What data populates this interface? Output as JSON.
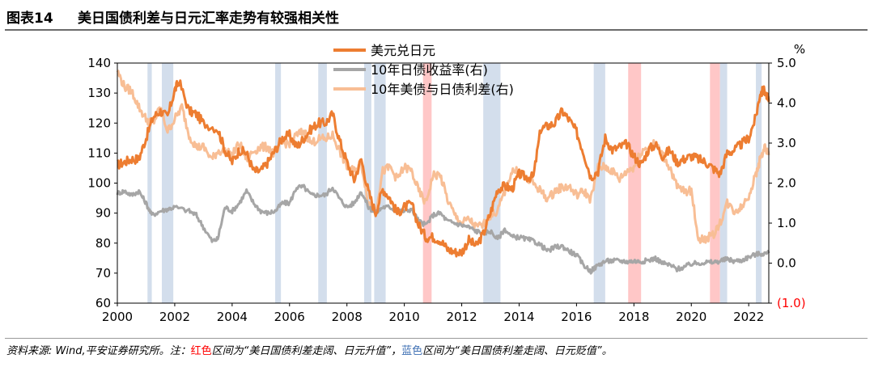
{
  "figure": {
    "label": "图表14",
    "title": "美日国债利差与日元汇率走势有较强相关性"
  },
  "source_note": {
    "prefix": "资料来源: Wind,平安证券研究所。注：",
    "red_word": "红色",
    "middle1": "区间为“美日国债利差走阔、日元升值”，",
    "blue_word": "蓝色",
    "middle2": "区间为“美日国债利差走阔、日元贬值”。"
  },
  "colors": {
    "usdjpy": "#ed7d31",
    "jgb10y": "#a6a6a6",
    "spread": "#f8be95",
    "red_band": "#ffc7c7",
    "blue_band": "#d3deec",
    "neg_label": "#ff0000"
  },
  "chart_data": {
    "type": "line",
    "x_ticks": [
      "2000",
      "2002",
      "2004",
      "2006",
      "2008",
      "2010",
      "2012",
      "2014",
      "2016",
      "2018",
      "2020",
      "2022"
    ],
    "x_range": [
      2000.0,
      2022.7
    ],
    "y_left": {
      "range": [
        60,
        140
      ],
      "ticks": [
        "140",
        "130",
        "120",
        "110",
        "100",
        "90",
        "80",
        "70",
        "60"
      ]
    },
    "y_right": {
      "unit": "%",
      "range": [
        -1.0,
        5.0
      ],
      "ticks": [
        "5.0",
        "4.0",
        "3.0",
        "2.0",
        "1.0",
        "0.0",
        "(1.0)"
      ],
      "negative_tick": "(1.0)"
    },
    "legend": {
      "placement": "top-center"
    },
    "series": [
      {
        "name": "美元兑日元",
        "axis": "left",
        "color_key": "usdjpy",
        "points": [
          [
            2000.0,
            106
          ],
          [
            2000.25,
            107
          ],
          [
            2000.5,
            108
          ],
          [
            2000.75,
            108
          ],
          [
            2001.0,
            115
          ],
          [
            2001.25,
            122
          ],
          [
            2001.5,
            124
          ],
          [
            2001.75,
            122
          ],
          [
            2002.0,
            131
          ],
          [
            2002.15,
            134
          ],
          [
            2002.5,
            124
          ],
          [
            2002.75,
            123
          ],
          [
            2003.0,
            120
          ],
          [
            2003.5,
            118
          ],
          [
            2003.75,
            111
          ],
          [
            2004.0,
            107
          ],
          [
            2004.25,
            111
          ],
          [
            2004.5,
            110
          ],
          [
            2004.75,
            104
          ],
          [
            2005.0,
            104
          ],
          [
            2005.25,
            107
          ],
          [
            2005.5,
            111
          ],
          [
            2005.75,
            115
          ],
          [
            2006.0,
            116
          ],
          [
            2006.25,
            112
          ],
          [
            2006.5,
            115
          ],
          [
            2006.75,
            118
          ],
          [
            2007.0,
            120
          ],
          [
            2007.25,
            120
          ],
          [
            2007.5,
            123
          ],
          [
            2007.75,
            114
          ],
          [
            2008.0,
            107
          ],
          [
            2008.25,
            101
          ],
          [
            2008.5,
            108
          ],
          [
            2008.75,
            97
          ],
          [
            2009.0,
            90
          ],
          [
            2009.25,
            98
          ],
          [
            2009.5,
            95
          ],
          [
            2009.75,
            90
          ],
          [
            2010.0,
            92
          ],
          [
            2010.25,
            93
          ],
          [
            2010.5,
            86
          ],
          [
            2010.75,
            82
          ],
          [
            2011.0,
            82
          ],
          [
            2011.25,
            81
          ],
          [
            2011.5,
            78
          ],
          [
            2011.75,
            77
          ],
          [
            2012.0,
            77
          ],
          [
            2012.25,
            81
          ],
          [
            2012.5,
            79
          ],
          [
            2012.75,
            83
          ],
          [
            2013.0,
            90
          ],
          [
            2013.25,
            98
          ],
          [
            2013.5,
            99
          ],
          [
            2013.75,
            98
          ],
          [
            2014.0,
            103
          ],
          [
            2014.25,
            102
          ],
          [
            2014.5,
            102
          ],
          [
            2014.75,
            118
          ],
          [
            2015.0,
            119
          ],
          [
            2015.25,
            120
          ],
          [
            2015.5,
            124
          ],
          [
            2015.75,
            121
          ],
          [
            2016.0,
            117
          ],
          [
            2016.25,
            110
          ],
          [
            2016.5,
            102
          ],
          [
            2016.75,
            104
          ],
          [
            2017.0,
            115
          ],
          [
            2017.25,
            111
          ],
          [
            2017.5,
            112
          ],
          [
            2017.75,
            113
          ],
          [
            2018.0,
            109
          ],
          [
            2018.25,
            106
          ],
          [
            2018.5,
            111
          ],
          [
            2018.75,
            113
          ],
          [
            2019.0,
            109
          ],
          [
            2019.25,
            111
          ],
          [
            2019.5,
            107
          ],
          [
            2019.75,
            108
          ],
          [
            2020.0,
            109
          ],
          [
            2020.25,
            108
          ],
          [
            2020.5,
            107
          ],
          [
            2020.75,
            105
          ],
          [
            2021.0,
            103
          ],
          [
            2021.25,
            110
          ],
          [
            2021.5,
            111
          ],
          [
            2021.75,
            113
          ],
          [
            2022.0,
            115
          ],
          [
            2022.25,
            122
          ],
          [
            2022.4,
            130
          ],
          [
            2022.55,
            131
          ],
          [
            2022.7,
            127
          ]
        ]
      },
      {
        "name": "10年日债收益率(右)",
        "axis": "right",
        "color_key": "jgb10y",
        "points": [
          [
            2000.0,
            1.75
          ],
          [
            2000.25,
            1.8
          ],
          [
            2000.5,
            1.7
          ],
          [
            2000.75,
            1.8
          ],
          [
            2001.0,
            1.5
          ],
          [
            2001.2,
            1.2
          ],
          [
            2001.5,
            1.3
          ],
          [
            2001.75,
            1.35
          ],
          [
            2002.0,
            1.4
          ],
          [
            2002.5,
            1.3
          ],
          [
            2002.75,
            1.2
          ],
          [
            2003.0,
            0.9
          ],
          [
            2003.3,
            0.55
          ],
          [
            2003.5,
            0.6
          ],
          [
            2003.75,
            1.4
          ],
          [
            2004.0,
            1.3
          ],
          [
            2004.25,
            1.5
          ],
          [
            2004.5,
            1.8
          ],
          [
            2004.75,
            1.5
          ],
          [
            2005.0,
            1.3
          ],
          [
            2005.25,
            1.25
          ],
          [
            2005.5,
            1.3
          ],
          [
            2005.75,
            1.5
          ],
          [
            2006.0,
            1.5
          ],
          [
            2006.25,
            1.9
          ],
          [
            2006.5,
            1.9
          ],
          [
            2006.75,
            1.7
          ],
          [
            2007.0,
            1.7
          ],
          [
            2007.25,
            1.7
          ],
          [
            2007.5,
            1.9
          ],
          [
            2007.75,
            1.6
          ],
          [
            2008.0,
            1.4
          ],
          [
            2008.25,
            1.5
          ],
          [
            2008.5,
            1.8
          ],
          [
            2008.75,
            1.4
          ],
          [
            2009.0,
            1.25
          ],
          [
            2009.25,
            1.4
          ],
          [
            2009.5,
            1.4
          ],
          [
            2009.75,
            1.3
          ],
          [
            2010.0,
            1.3
          ],
          [
            2010.25,
            1.35
          ],
          [
            2010.5,
            1.05
          ],
          [
            2010.75,
            0.95
          ],
          [
            2011.0,
            1.2
          ],
          [
            2011.25,
            1.25
          ],
          [
            2011.5,
            1.05
          ],
          [
            2011.75,
            1.0
          ],
          [
            2012.0,
            0.95
          ],
          [
            2012.25,
            0.9
          ],
          [
            2012.5,
            0.8
          ],
          [
            2012.75,
            0.75
          ],
          [
            2013.0,
            0.8
          ],
          [
            2013.25,
            0.6
          ],
          [
            2013.5,
            0.85
          ],
          [
            2013.75,
            0.65
          ],
          [
            2014.0,
            0.65
          ],
          [
            2014.25,
            0.6
          ],
          [
            2014.5,
            0.55
          ],
          [
            2014.75,
            0.45
          ],
          [
            2015.0,
            0.3
          ],
          [
            2015.25,
            0.4
          ],
          [
            2015.5,
            0.42
          ],
          [
            2015.75,
            0.3
          ],
          [
            2016.0,
            0.2
          ],
          [
            2016.25,
            -0.05
          ],
          [
            2016.5,
            -0.2
          ],
          [
            2016.75,
            -0.05
          ],
          [
            2017.0,
            0.05
          ],
          [
            2017.25,
            0.06
          ],
          [
            2017.5,
            0.06
          ],
          [
            2017.75,
            0.04
          ],
          [
            2018.0,
            0.05
          ],
          [
            2018.25,
            0.04
          ],
          [
            2018.5,
            0.07
          ],
          [
            2018.75,
            0.12
          ],
          [
            2019.0,
            0.0
          ],
          [
            2019.25,
            -0.05
          ],
          [
            2019.5,
            -0.15
          ],
          [
            2019.75,
            -0.1
          ],
          [
            2020.0,
            -0.02
          ],
          [
            2020.25,
            0.0
          ],
          [
            2020.5,
            0.02
          ],
          [
            2020.75,
            0.02
          ],
          [
            2021.0,
            0.05
          ],
          [
            2021.25,
            0.1
          ],
          [
            2021.5,
            0.05
          ],
          [
            2021.75,
            0.07
          ],
          [
            2022.0,
            0.15
          ],
          [
            2022.25,
            0.22
          ],
          [
            2022.5,
            0.24
          ],
          [
            2022.7,
            0.25
          ]
        ]
      },
      {
        "name": "10年美债与日债利差(右)",
        "axis": "right",
        "color_key": "spread",
        "points": [
          [
            2000.0,
            4.8
          ],
          [
            2000.25,
            4.4
          ],
          [
            2000.5,
            4.3
          ],
          [
            2000.75,
            3.9
          ],
          [
            2001.0,
            3.6
          ],
          [
            2001.25,
            3.5
          ],
          [
            2001.5,
            3.9
          ],
          [
            2001.75,
            3.3
          ],
          [
            2002.0,
            3.6
          ],
          [
            2002.25,
            3.9
          ],
          [
            2002.5,
            3.2
          ],
          [
            2002.75,
            2.9
          ],
          [
            2003.0,
            2.9
          ],
          [
            2003.3,
            2.6
          ],
          [
            2003.5,
            2.8
          ],
          [
            2003.75,
            2.8
          ],
          [
            2004.0,
            2.7
          ],
          [
            2004.25,
            3.0
          ],
          [
            2004.5,
            2.6
          ],
          [
            2004.75,
            2.8
          ],
          [
            2005.0,
            2.9
          ],
          [
            2005.25,
            2.9
          ],
          [
            2005.5,
            2.7
          ],
          [
            2005.75,
            3.0
          ],
          [
            2006.0,
            3.0
          ],
          [
            2006.25,
            3.2
          ],
          [
            2006.5,
            3.3
          ],
          [
            2006.75,
            3.0
          ],
          [
            2007.0,
            3.1
          ],
          [
            2007.25,
            3.1
          ],
          [
            2007.5,
            3.2
          ],
          [
            2007.75,
            2.8
          ],
          [
            2008.0,
            2.4
          ],
          [
            2008.25,
            2.3
          ],
          [
            2008.5,
            2.5
          ],
          [
            2008.75,
            1.5
          ],
          [
            2009.0,
            1.3
          ],
          [
            2009.25,
            2.3
          ],
          [
            2009.5,
            2.4
          ],
          [
            2009.75,
            2.1
          ],
          [
            2010.0,
            2.4
          ],
          [
            2010.25,
            2.3
          ],
          [
            2010.5,
            1.8
          ],
          [
            2010.75,
            1.5
          ],
          [
            2011.0,
            2.2
          ],
          [
            2011.25,
            2.2
          ],
          [
            2011.5,
            1.6
          ],
          [
            2011.75,
            1.2
          ],
          [
            2012.0,
            1.0
          ],
          [
            2012.25,
            1.1
          ],
          [
            2012.5,
            0.9
          ],
          [
            2012.75,
            0.95
          ],
          [
            2013.0,
            1.2
          ],
          [
            2013.25,
            1.3
          ],
          [
            2013.5,
            1.8
          ],
          [
            2013.75,
            2.3
          ],
          [
            2014.0,
            2.3
          ],
          [
            2014.25,
            2.1
          ],
          [
            2014.5,
            2.0
          ],
          [
            2014.75,
            1.8
          ],
          [
            2015.0,
            1.6
          ],
          [
            2015.25,
            1.8
          ],
          [
            2015.5,
            1.9
          ],
          [
            2015.75,
            1.9
          ],
          [
            2016.0,
            1.7
          ],
          [
            2016.25,
            1.8
          ],
          [
            2016.5,
            1.6
          ],
          [
            2016.75,
            2.4
          ],
          [
            2017.0,
            2.4
          ],
          [
            2017.25,
            2.3
          ],
          [
            2017.5,
            2.1
          ],
          [
            2017.75,
            2.3
          ],
          [
            2018.0,
            2.4
          ],
          [
            2018.25,
            2.8
          ],
          [
            2018.5,
            2.9
          ],
          [
            2018.75,
            3.0
          ],
          [
            2019.0,
            2.7
          ],
          [
            2019.25,
            2.4
          ],
          [
            2019.5,
            1.9
          ],
          [
            2019.75,
            1.8
          ],
          [
            2020.0,
            1.8
          ],
          [
            2020.25,
            0.6
          ],
          [
            2020.5,
            0.6
          ],
          [
            2020.75,
            0.7
          ],
          [
            2021.0,
            1.0
          ],
          [
            2021.25,
            1.5
          ],
          [
            2021.5,
            1.3
          ],
          [
            2021.75,
            1.4
          ],
          [
            2022.0,
            1.7
          ],
          [
            2022.25,
            2.2
          ],
          [
            2022.4,
            2.6
          ],
          [
            2022.55,
            2.9
          ],
          [
            2022.7,
            2.7
          ]
        ]
      }
    ],
    "shaded_periods": [
      {
        "color_key": "blue_band",
        "start": 2001.05,
        "end": 2001.2
      },
      {
        "color_key": "blue_band",
        "start": 2001.55,
        "end": 2001.95
      },
      {
        "color_key": "blue_band",
        "start": 2005.5,
        "end": 2005.7
      },
      {
        "color_key": "blue_band",
        "start": 2007.0,
        "end": 2007.3
      },
      {
        "color_key": "blue_band",
        "start": 2008.6,
        "end": 2008.85
      },
      {
        "color_key": "blue_band",
        "start": 2008.95,
        "end": 2009.35
      },
      {
        "color_key": "red_band",
        "start": 2010.65,
        "end": 2010.95
      },
      {
        "color_key": "blue_band",
        "start": 2012.75,
        "end": 2013.35
      },
      {
        "color_key": "blue_band",
        "start": 2016.6,
        "end": 2017.0
      },
      {
        "color_key": "red_band",
        "start": 2017.8,
        "end": 2018.25
      },
      {
        "color_key": "red_band",
        "start": 2020.65,
        "end": 2021.0
      },
      {
        "color_key": "blue_band",
        "start": 2021.0,
        "end": 2021.25
      },
      {
        "color_key": "blue_band",
        "start": 2022.25,
        "end": 2022.45
      }
    ]
  }
}
